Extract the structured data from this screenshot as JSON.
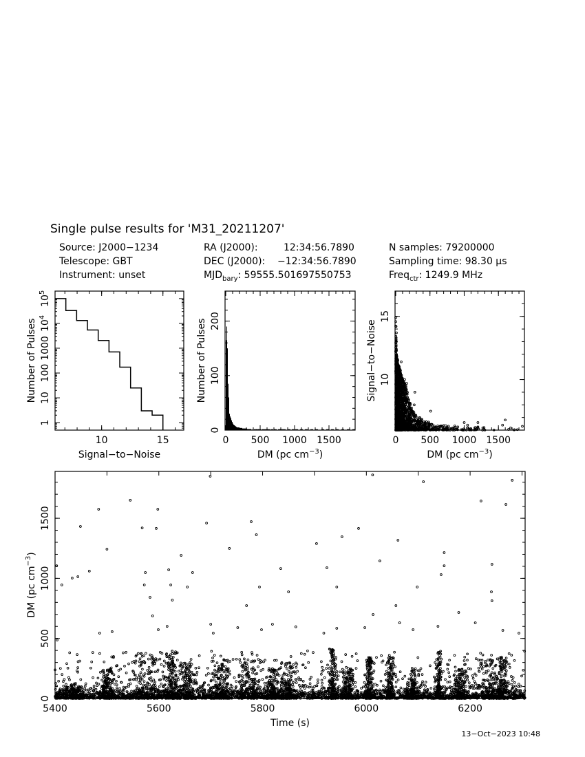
{
  "title": "Single pulse results for 'M31_20211207'",
  "info": {
    "source": "Source: J2000−1234",
    "telescope": "Telescope: GBT",
    "instrument": "Instrument: unset",
    "ra_label": "RA (J2000):",
    "ra_value": "12:34:56.7890",
    "dec_label": "DEC (J2000):",
    "dec_value": "−12:34:56.7890",
    "mjd_label": "MJD",
    "mjd_sub": "bary",
    "mjd_value": ": 59555.501697550753",
    "nsamples": "N samples: 79200000",
    "sampling": "Sampling time: 98.30 μs",
    "freq_label": "Freq",
    "freq_sub": "ctr",
    "freq_value": ": 1249.9 MHz"
  },
  "timestamp": "13−Oct−2023 10:48",
  "chart_data": [
    {
      "type": "bar",
      "id": "snr-histogram",
      "style": "step",
      "xlabel": "Signal−to−Noise",
      "ylabel": "Number of Pulses",
      "yscale": "log",
      "xlim": [
        6.2,
        16.7
      ],
      "ylim": [
        0.5,
        200000
      ],
      "xticks": [
        "10",
        "15"
      ],
      "yticks": [
        {
          "v": 1,
          "t": "1"
        },
        {
          "v": 10,
          "t": "10"
        },
        {
          "v": 100,
          "t": "100"
        },
        {
          "v": 1000,
          "t": "1000"
        },
        {
          "v": 10000,
          "t": "10",
          "sup": "4"
        },
        {
          "v": 100000,
          "t": "10",
          "sup": "5"
        }
      ],
      "bin_edges": [
        6.2,
        7.08,
        7.96,
        8.84,
        9.72,
        10.6,
        11.48,
        12.36,
        13.24,
        14.12,
        15.0
      ],
      "values": [
        100000,
        33000,
        13000,
        5400,
        2050,
        710,
        172,
        25,
        3,
        2
      ]
    },
    {
      "type": "bar",
      "id": "dm-histogram",
      "xlabel": "DM (pc cm",
      "xlabel_sup": "−3",
      "xlabel_end": ")",
      "ylabel": "Number of Pulses",
      "xlim": [
        -10,
        1880
      ],
      "ylim": [
        0,
        255
      ],
      "xticks": [
        "0",
        "500",
        "1000",
        "1500"
      ],
      "yticks": [
        "0",
        "100",
        "200"
      ],
      "bin_width": 10,
      "values": [
        165,
        190,
        150,
        85,
        60,
        30,
        25,
        22,
        18,
        15,
        12,
        10,
        9,
        8,
        7,
        6,
        5,
        5,
        5,
        4,
        4,
        4,
        4,
        4,
        3,
        3,
        3,
        3,
        3,
        3,
        3,
        2,
        2,
        2,
        2,
        2,
        2,
        1,
        1,
        1
      ],
      "tail_single_counts_dm": [
        410,
        440,
        470,
        520,
        560,
        600,
        650,
        700,
        760,
        790,
        830,
        900,
        960,
        1010,
        1080,
        1150,
        1230,
        1300,
        1390,
        1460,
        1530,
        1600,
        1680,
        1760,
        1840
      ]
    },
    {
      "type": "scatter",
      "id": "snr-vs-dm",
      "xlabel": "DM (pc cm",
      "xlabel_sup": "−3",
      "xlabel_end": ")",
      "ylabel": "Signal−to−Noise",
      "xlim": [
        -10,
        1880
      ],
      "ylim": [
        6.0,
        17.0
      ],
      "xticks": [
        "0",
        "500",
        "1000",
        "1500"
      ],
      "yticks": [
        "10",
        "15"
      ],
      "envelope": [
        [
          0,
          14.9
        ],
        [
          5,
          13.5
        ],
        [
          15,
          12.0
        ],
        [
          40,
          11.3
        ],
        [
          80,
          10.5
        ],
        [
          120,
          9.8
        ],
        [
          150,
          9.5
        ],
        [
          200,
          8.3
        ],
        [
          250,
          7.6
        ],
        [
          300,
          7.2
        ],
        [
          400,
          6.8
        ],
        [
          500,
          6.6
        ],
        [
          600,
          6.4
        ],
        [
          1000,
          6.3
        ],
        [
          1880,
          6.2
        ]
      ],
      "points": [
        [
          0,
          14.9
        ],
        [
          5,
          14.2
        ],
        [
          10,
          13.7
        ],
        [
          80,
          11.4
        ],
        [
          130,
          10.0
        ],
        [
          160,
          9.7
        ],
        [
          280,
          9.0
        ],
        [
          270,
          8.0
        ],
        [
          510,
          7.5
        ],
        [
          1000,
          6.6
        ],
        [
          1200,
          6.6
        ],
        [
          1600,
          6.8
        ],
        [
          1850,
          6.3
        ],
        [
          1050,
          6.4
        ],
        [
          1560,
          6.4
        ]
      ]
    },
    {
      "type": "scatter",
      "id": "dm-vs-time",
      "xlabel": "Time (s)",
      "ylabel": "DM (pc cm",
      "ylabel_sup": "−3",
      "ylabel_end": ")",
      "xlim": [
        5400,
        6306
      ],
      "ylim": [
        0,
        1890
      ],
      "xticks": [
        "5400",
        "5600",
        "5800",
        "6000",
        "6200"
      ],
      "yticks": [
        "0",
        "500",
        "1000",
        "1500"
      ],
      "points": [
        [
          5403,
          1105
        ],
        [
          5413,
          945
        ],
        [
          5433,
          1002
        ],
        [
          5444,
          1014
        ],
        [
          5466,
          1060
        ],
        [
          5449,
          1432
        ],
        [
          5484,
          1575
        ],
        [
          5500,
          1243
        ],
        [
          5545,
          1650
        ],
        [
          5568,
          1420
        ],
        [
          5574,
          1048
        ],
        [
          5572,
          945
        ],
        [
          5583,
          842
        ],
        [
          5588,
          687
        ],
        [
          5595,
          1415
        ],
        [
          5598,
          1575
        ],
        [
          5619,
          1071
        ],
        [
          5623,
          945
        ],
        [
          5626,
          819
        ],
        [
          5643,
          1191
        ],
        [
          5655,
          928
        ],
        [
          5699,
          1850
        ],
        [
          5692,
          1460
        ],
        [
          5665,
          1048
        ],
        [
          5700,
          618
        ],
        [
          5736,
          1249
        ],
        [
          5778,
          1472
        ],
        [
          5788,
          1363
        ],
        [
          5769,
          773
        ],
        [
          5794,
          928
        ],
        [
          5819,
          618
        ],
        [
          5835,
          1082
        ],
        [
          5850,
          888
        ],
        [
          5904,
          1289
        ],
        [
          5924,
          1088
        ],
        [
          5943,
          928
        ],
        [
          5953,
          1346
        ],
        [
          5985,
          1415
        ],
        [
          6012,
          1861
        ],
        [
          6026,
          1145
        ],
        [
          6013,
          699
        ],
        [
          6057,
          773
        ],
        [
          6061,
          1317
        ],
        [
          6098,
          928
        ],
        [
          6110,
          1804
        ],
        [
          6150,
          1214
        ],
        [
          6150,
          1105
        ],
        [
          6144,
          1031
        ],
        [
          6178,
          716
        ],
        [
          6221,
          1644
        ],
        [
          6242,
          1117
        ],
        [
          6241,
          888
        ],
        [
          6242,
          813
        ],
        [
          6269,
          1615
        ],
        [
          6281,
          1816
        ],
        [
          5404,
          487
        ],
        [
          5486,
          544
        ],
        [
          5510,
          556
        ],
        [
          5599,
          573
        ],
        [
          5616,
          601
        ],
        [
          5705,
          544
        ],
        [
          5752,
          590
        ],
        [
          5798,
          573
        ],
        [
          5864,
          596
        ],
        [
          5918,
          544
        ],
        [
          5943,
          584
        ],
        [
          5997,
          590
        ],
        [
          6064,
          630
        ],
        [
          6090,
          573
        ],
        [
          6138,
          601
        ],
        [
          6210,
          630
        ],
        [
          6263,
          567
        ],
        [
          6294,
          544
        ]
      ],
      "dense_clusters": [
        [
          5440,
          8,
          120
        ],
        [
          5500,
          6,
          250
        ],
        [
          5575,
          20,
          380
        ],
        [
          5625,
          6,
          400
        ],
        [
          5655,
          8,
          300
        ],
        [
          5720,
          10,
          330
        ],
        [
          5775,
          12,
          330
        ],
        [
          5820,
          6,
          250
        ],
        [
          5850,
          8,
          300
        ],
        [
          5935,
          4,
          420
        ],
        [
          5965,
          6,
          250
        ],
        [
          6005,
          4,
          350
        ],
        [
          6045,
          4,
          350
        ],
        [
          6090,
          6,
          250
        ],
        [
          6140,
          3,
          400
        ],
        [
          6180,
          8,
          250
        ],
        [
          6240,
          15,
          330
        ],
        [
          6260,
          6,
          350
        ]
      ]
    }
  ]
}
